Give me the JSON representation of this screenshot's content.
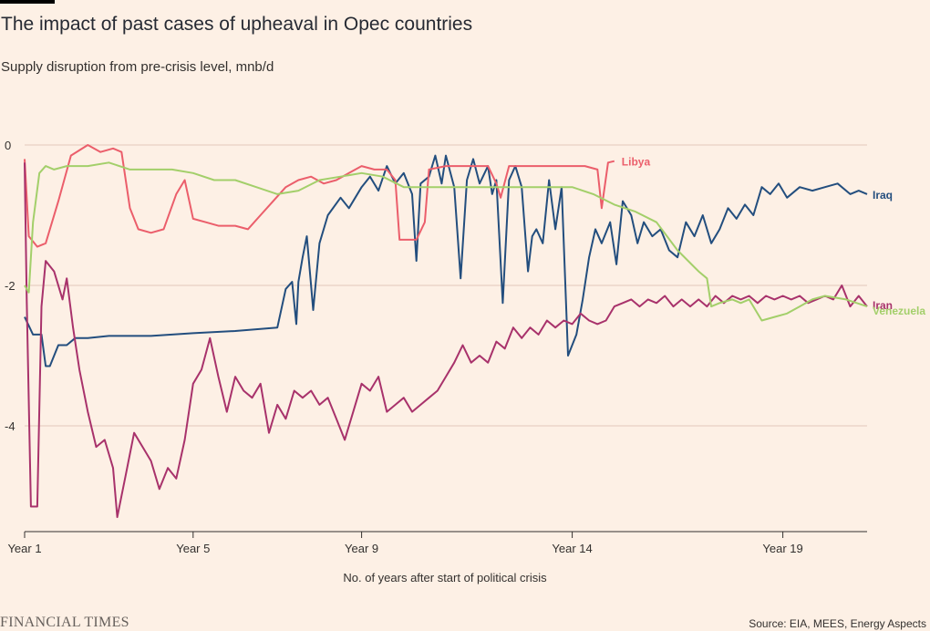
{
  "header": {
    "title": "The impact of past cases of upheaval in Opec countries",
    "subtitle": "Supply disruption from pre-crisis level, mnb/d"
  },
  "footer": {
    "brand": "FINANCIAL TIMES",
    "source": "Source: EIA, MEES, Energy Aspects"
  },
  "colors": {
    "background": "#fdf0e5",
    "grid": "#e3c9bb",
    "axis": "#33302e",
    "iraq": "#234e7e",
    "libya": "#eb5e6b",
    "iran": "#a8326b",
    "venezuela": "#a3cf6a"
  },
  "chart_data": {
    "type": "line",
    "title": "The impact of past cases of upheaval in Opec countries",
    "ylabel": "Supply disruption from pre-crisis level, mnb/d",
    "xlabel": "No. of years after start of political crisis",
    "xlim": [
      1,
      21
    ],
    "ylim": [
      -5.5,
      0.1
    ],
    "y_ticks": [
      0,
      -2,
      -4
    ],
    "y_tick_labels": [
      "0",
      "-2",
      "-4"
    ],
    "x_ticks": [
      1,
      5,
      9,
      14,
      19
    ],
    "x_tick_labels": [
      "Year 1",
      "Year 5",
      "Year 9",
      "Year 14",
      "Year 19"
    ],
    "grid": true,
    "legend": "inline labels at line ends",
    "series": [
      {
        "name": "Iraq",
        "color": "#234e7e",
        "points": [
          [
            1,
            -2.45
          ],
          [
            1.2,
            -2.7
          ],
          [
            1.4,
            -2.7
          ],
          [
            1.5,
            -3.15
          ],
          [
            1.6,
            -3.15
          ],
          [
            1.8,
            -2.85
          ],
          [
            2.0,
            -2.85
          ],
          [
            2.2,
            -2.75
          ],
          [
            2.5,
            -2.75
          ],
          [
            3,
            -2.72
          ],
          [
            4,
            -2.72
          ],
          [
            5,
            -2.68
          ],
          [
            6,
            -2.65
          ],
          [
            7,
            -2.6
          ],
          [
            7.2,
            -2.05
          ],
          [
            7.35,
            -1.95
          ],
          [
            7.45,
            -2.55
          ],
          [
            7.5,
            -1.95
          ],
          [
            7.6,
            -1.6
          ],
          [
            7.7,
            -1.3
          ],
          [
            7.85,
            -2.35
          ],
          [
            8,
            -1.4
          ],
          [
            8.2,
            -1.0
          ],
          [
            8.5,
            -0.75
          ],
          [
            8.7,
            -0.9
          ],
          [
            9,
            -0.6
          ],
          [
            9.2,
            -0.45
          ],
          [
            9.4,
            -0.65
          ],
          [
            9.6,
            -0.3
          ],
          [
            9.8,
            -0.55
          ],
          [
            10.0,
            -0.4
          ],
          [
            10.2,
            -0.7
          ],
          [
            10.3,
            -1.65
          ],
          [
            10.4,
            -0.55
          ],
          [
            10.6,
            -0.45
          ],
          [
            10.75,
            -0.15
          ],
          [
            10.9,
            -0.55
          ],
          [
            11.0,
            -0.15
          ],
          [
            11.2,
            -0.6
          ],
          [
            11.35,
            -1.9
          ],
          [
            11.5,
            -0.5
          ],
          [
            11.65,
            -0.2
          ],
          [
            11.8,
            -0.55
          ],
          [
            12.0,
            -0.3
          ],
          [
            12.1,
            -0.7
          ],
          [
            12.2,
            -0.5
          ],
          [
            12.35,
            -2.25
          ],
          [
            12.5,
            -0.5
          ],
          [
            12.65,
            -0.3
          ],
          [
            12.8,
            -0.6
          ],
          [
            12.95,
            -1.8
          ],
          [
            13.05,
            -1.3
          ],
          [
            13.15,
            -1.2
          ],
          [
            13.3,
            -1.4
          ],
          [
            13.45,
            -0.5
          ],
          [
            13.6,
            -1.2
          ],
          [
            13.75,
            -0.6
          ],
          [
            13.9,
            -3.0
          ],
          [
            14.1,
            -2.7
          ],
          [
            14.25,
            -2.2
          ],
          [
            14.4,
            -1.6
          ],
          [
            14.55,
            -1.2
          ],
          [
            14.7,
            -1.4
          ],
          [
            14.9,
            -1.1
          ],
          [
            15.05,
            -1.7
          ],
          [
            15.2,
            -0.8
          ],
          [
            15.4,
            -1.0
          ],
          [
            15.55,
            -1.4
          ],
          [
            15.7,
            -1.1
          ],
          [
            15.9,
            -1.3
          ],
          [
            16.1,
            -1.2
          ],
          [
            16.3,
            -1.5
          ],
          [
            16.5,
            -1.6
          ],
          [
            16.7,
            -1.1
          ],
          [
            16.9,
            -1.3
          ],
          [
            17.1,
            -1.0
          ],
          [
            17.3,
            -1.4
          ],
          [
            17.5,
            -1.2
          ],
          [
            17.7,
            -0.9
          ],
          [
            17.9,
            -1.05
          ],
          [
            18.1,
            -0.85
          ],
          [
            18.3,
            -1.0
          ],
          [
            18.5,
            -0.6
          ],
          [
            18.7,
            -0.7
          ],
          [
            18.9,
            -0.55
          ],
          [
            19.1,
            -0.75
          ],
          [
            19.4,
            -0.6
          ],
          [
            19.7,
            -0.65
          ],
          [
            20.0,
            -0.6
          ],
          [
            20.3,
            -0.55
          ],
          [
            20.6,
            -0.7
          ],
          [
            20.8,
            -0.65
          ],
          [
            21,
            -0.7
          ]
        ]
      },
      {
        "name": "Libya",
        "color": "#eb5e6b",
        "points": [
          [
            1,
            -0.2
          ],
          [
            1.1,
            -1.3
          ],
          [
            1.3,
            -1.45
          ],
          [
            1.5,
            -1.4
          ],
          [
            1.8,
            -0.8
          ],
          [
            2.1,
            -0.15
          ],
          [
            2.5,
            0.0
          ],
          [
            2.8,
            -0.1
          ],
          [
            3.1,
            -0.05
          ],
          [
            3.3,
            -0.1
          ],
          [
            3.5,
            -0.9
          ],
          [
            3.7,
            -1.2
          ],
          [
            4.0,
            -1.25
          ],
          [
            4.3,
            -1.2
          ],
          [
            4.6,
            -0.7
          ],
          [
            4.8,
            -0.5
          ],
          [
            5.0,
            -1.05
          ],
          [
            5.3,
            -1.1
          ],
          [
            5.6,
            -1.15
          ],
          [
            6.0,
            -1.15
          ],
          [
            6.3,
            -1.2
          ],
          [
            6.6,
            -1.0
          ],
          [
            6.9,
            -0.8
          ],
          [
            7.2,
            -0.6
          ],
          [
            7.5,
            -0.5
          ],
          [
            7.8,
            -0.45
          ],
          [
            8.1,
            -0.55
          ],
          [
            8.4,
            -0.5
          ],
          [
            8.7,
            -0.4
          ],
          [
            9.0,
            -0.3
          ],
          [
            9.3,
            -0.35
          ],
          [
            9.6,
            -0.35
          ],
          [
            9.8,
            -0.5
          ],
          [
            9.9,
            -1.35
          ],
          [
            10.3,
            -1.35
          ],
          [
            10.5,
            -1.1
          ],
          [
            10.6,
            -0.35
          ],
          [
            11.0,
            -0.3
          ],
          [
            11.5,
            -0.3
          ],
          [
            12.0,
            -0.3
          ],
          [
            12.2,
            -0.55
          ],
          [
            12.3,
            -0.75
          ],
          [
            12.5,
            -0.3
          ],
          [
            13.0,
            -0.3
          ],
          [
            13.5,
            -0.3
          ],
          [
            14.0,
            -0.3
          ],
          [
            14.3,
            -0.3
          ],
          [
            14.6,
            -0.35
          ],
          [
            14.7,
            -0.9
          ],
          [
            14.85,
            -0.25
          ],
          [
            15.0,
            -0.23
          ]
        ]
      },
      {
        "name": "Iran",
        "color": "#a8326b",
        "points": [
          [
            1,
            -0.25
          ],
          [
            1.05,
            -2.2
          ],
          [
            1.15,
            -5.15
          ],
          [
            1.3,
            -5.15
          ],
          [
            1.4,
            -2.3
          ],
          [
            1.5,
            -1.65
          ],
          [
            1.7,
            -1.8
          ],
          [
            1.9,
            -2.2
          ],
          [
            2.0,
            -1.9
          ],
          [
            2.15,
            -2.6
          ],
          [
            2.3,
            -3.2
          ],
          [
            2.5,
            -3.8
          ],
          [
            2.7,
            -4.3
          ],
          [
            2.9,
            -4.2
          ],
          [
            3.1,
            -4.6
          ],
          [
            3.2,
            -5.3
          ],
          [
            3.4,
            -4.7
          ],
          [
            3.6,
            -4.1
          ],
          [
            3.8,
            -4.3
          ],
          [
            4.0,
            -4.5
          ],
          [
            4.2,
            -4.9
          ],
          [
            4.4,
            -4.6
          ],
          [
            4.6,
            -4.75
          ],
          [
            4.8,
            -4.2
          ],
          [
            5.0,
            -3.4
          ],
          [
            5.2,
            -3.2
          ],
          [
            5.4,
            -2.75
          ],
          [
            5.6,
            -3.3
          ],
          [
            5.8,
            -3.8
          ],
          [
            6.0,
            -3.3
          ],
          [
            6.2,
            -3.5
          ],
          [
            6.4,
            -3.6
          ],
          [
            6.6,
            -3.4
          ],
          [
            6.8,
            -4.1
          ],
          [
            7.0,
            -3.7
          ],
          [
            7.2,
            -3.9
          ],
          [
            7.4,
            -3.5
          ],
          [
            7.6,
            -3.6
          ],
          [
            7.8,
            -3.5
          ],
          [
            8.0,
            -3.7
          ],
          [
            8.2,
            -3.6
          ],
          [
            8.4,
            -3.9
          ],
          [
            8.6,
            -4.2
          ],
          [
            8.8,
            -3.8
          ],
          [
            9.0,
            -3.4
          ],
          [
            9.2,
            -3.5
          ],
          [
            9.4,
            -3.3
          ],
          [
            9.6,
            -3.8
          ],
          [
            9.8,
            -3.7
          ],
          [
            10.0,
            -3.6
          ],
          [
            10.2,
            -3.8
          ],
          [
            10.4,
            -3.7
          ],
          [
            10.6,
            -3.6
          ],
          [
            10.8,
            -3.5
          ],
          [
            11.0,
            -3.3
          ],
          [
            11.2,
            -3.1
          ],
          [
            11.4,
            -2.85
          ],
          [
            11.6,
            -3.1
          ],
          [
            11.8,
            -3.0
          ],
          [
            12.0,
            -3.1
          ],
          [
            12.2,
            -2.8
          ],
          [
            12.4,
            -2.9
          ],
          [
            12.6,
            -2.6
          ],
          [
            12.8,
            -2.75
          ],
          [
            13.0,
            -2.6
          ],
          [
            13.2,
            -2.7
          ],
          [
            13.4,
            -2.5
          ],
          [
            13.6,
            -2.6
          ],
          [
            13.8,
            -2.5
          ],
          [
            14.0,
            -2.55
          ],
          [
            14.2,
            -2.4
          ],
          [
            14.4,
            -2.5
          ],
          [
            14.6,
            -2.55
          ],
          [
            14.8,
            -2.5
          ],
          [
            15.0,
            -2.3
          ],
          [
            15.2,
            -2.25
          ],
          [
            15.4,
            -2.2
          ],
          [
            15.6,
            -2.3
          ],
          [
            15.8,
            -2.2
          ],
          [
            16.0,
            -2.25
          ],
          [
            16.2,
            -2.15
          ],
          [
            16.4,
            -2.3
          ],
          [
            16.6,
            -2.2
          ],
          [
            16.8,
            -2.3
          ],
          [
            17.0,
            -2.2
          ],
          [
            17.2,
            -2.3
          ],
          [
            17.4,
            -2.15
          ],
          [
            17.6,
            -2.25
          ],
          [
            17.8,
            -2.15
          ],
          [
            18.0,
            -2.2
          ],
          [
            18.2,
            -2.15
          ],
          [
            18.4,
            -2.25
          ],
          [
            18.6,
            -2.15
          ],
          [
            18.8,
            -2.2
          ],
          [
            19.0,
            -2.15
          ],
          [
            19.2,
            -2.2
          ],
          [
            19.4,
            -2.15
          ],
          [
            19.6,
            -2.25
          ],
          [
            19.8,
            -2.2
          ],
          [
            20.0,
            -2.15
          ],
          [
            20.2,
            -2.2
          ],
          [
            20.4,
            -2.0
          ],
          [
            20.6,
            -2.3
          ],
          [
            20.8,
            -2.15
          ],
          [
            21.0,
            -2.3
          ]
        ]
      },
      {
        "name": "Venezuela",
        "color": "#a3cf6a",
        "points": [
          [
            1,
            -2.0
          ],
          [
            1.1,
            -2.1
          ],
          [
            1.2,
            -1.1
          ],
          [
            1.35,
            -0.4
          ],
          [
            1.5,
            -0.3
          ],
          [
            1.7,
            -0.35
          ],
          [
            2.0,
            -0.3
          ],
          [
            2.5,
            -0.3
          ],
          [
            3.0,
            -0.25
          ],
          [
            3.5,
            -0.35
          ],
          [
            4.0,
            -0.35
          ],
          [
            4.5,
            -0.35
          ],
          [
            5.0,
            -0.4
          ],
          [
            5.5,
            -0.5
          ],
          [
            6.0,
            -0.5
          ],
          [
            6.5,
            -0.6
          ],
          [
            7.0,
            -0.7
          ],
          [
            7.5,
            -0.65
          ],
          [
            8.0,
            -0.5
          ],
          [
            8.5,
            -0.45
          ],
          [
            9.0,
            -0.4
          ],
          [
            9.5,
            -0.45
          ],
          [
            10.0,
            -0.6
          ],
          [
            10.5,
            -0.6
          ],
          [
            11.0,
            -0.6
          ],
          [
            11.5,
            -0.6
          ],
          [
            12.0,
            -0.6
          ],
          [
            12.5,
            -0.6
          ],
          [
            13.0,
            -0.6
          ],
          [
            13.5,
            -0.6
          ],
          [
            14.0,
            -0.6
          ],
          [
            14.5,
            -0.7
          ],
          [
            15.0,
            -0.85
          ],
          [
            15.5,
            -0.95
          ],
          [
            16.0,
            -1.1
          ],
          [
            16.5,
            -1.5
          ],
          [
            17.0,
            -1.8
          ],
          [
            17.2,
            -1.9
          ],
          [
            17.3,
            -2.3
          ],
          [
            17.5,
            -2.25
          ],
          [
            17.8,
            -2.2
          ],
          [
            18.0,
            -2.25
          ],
          [
            18.2,
            -2.2
          ],
          [
            18.5,
            -2.5
          ],
          [
            18.8,
            -2.45
          ],
          [
            19.1,
            -2.4
          ],
          [
            19.4,
            -2.3
          ],
          [
            19.7,
            -2.2
          ],
          [
            20.0,
            -2.15
          ],
          [
            20.5,
            -2.2
          ],
          [
            21.0,
            -2.3
          ]
        ]
      }
    ]
  }
}
